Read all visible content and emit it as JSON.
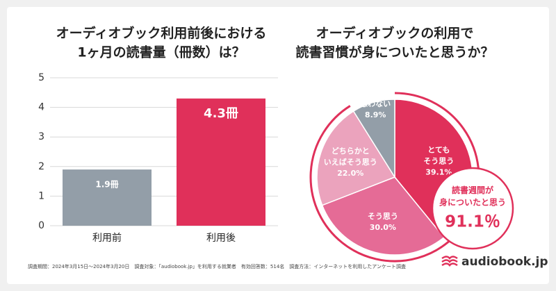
{
  "chart_data": [
    {
      "type": "bar",
      "title": "オーディオブック利用前後における\n1ヶ月の読書量（冊数）は？",
      "categories": [
        "利用前",
        "利用後"
      ],
      "values": [
        1.9,
        4.3
      ],
      "value_labels": [
        "1.9冊",
        "4.3冊"
      ],
      "colors": [
        "#939ea8",
        "#e0305a"
      ],
      "ylim": [
        0,
        5
      ],
      "yticks": [
        0,
        1,
        2,
        3,
        4,
        5
      ],
      "grid": true
    },
    {
      "type": "pie",
      "title": "オーディオブックの利用で\n読書習慣が身についたと思うか？",
      "categories": [
        "とても\nそう思う",
        "そう思う",
        "どちらかと\nいえばそう思う",
        "思わない"
      ],
      "values": [
        39.1,
        30.0,
        22.0,
        8.9
      ],
      "value_labels": [
        "39.1%",
        "30.0%",
        "22.0%",
        "8.9%"
      ],
      "colors": [
        "#e0305a",
        "#e56b96",
        "#eba3bd",
        "#939ea8"
      ],
      "annotation": {
        "text": "読書週間が\n身についたと思う",
        "value": 91.1,
        "label": "91.1％"
      }
    }
  ],
  "footer": {
    "note": "調査期間：2024年3月15日～2024年3月20日　調査対象：「audiobook.jp」を利用する就業者　有効回答数：514名　調査方法：インターネットを利用したアンケート調査",
    "logo": "audiobook.jp"
  }
}
